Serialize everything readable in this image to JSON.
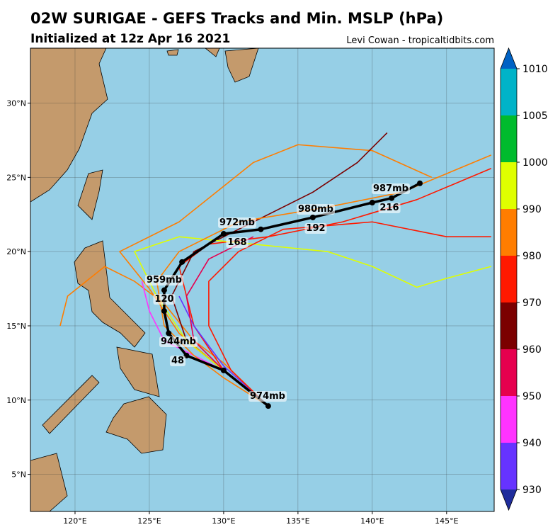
{
  "header": {
    "title": "02W SURIGAE - GEFS Tracks and Min. MSLP (hPa)",
    "subtitle": "Initialized at 12z Apr 16 2021",
    "credit": "Levi Cowan - tropicaltidbits.com"
  },
  "map": {
    "lonlim": [
      117,
      148.2
    ],
    "latlim": [
      2.5,
      33.7
    ],
    "xticks": [
      {
        "value": 120,
        "label": "120°E"
      },
      {
        "value": 125,
        "label": "125°E"
      },
      {
        "value": 130,
        "label": "130°E"
      },
      {
        "value": 135,
        "label": "135°E"
      },
      {
        "value": 140,
        "label": "140°E"
      },
      {
        "value": 145,
        "label": "145°E"
      }
    ],
    "yticks": [
      {
        "value": 5,
        "label": "5°N"
      },
      {
        "value": 10,
        "label": "10°N"
      },
      {
        "value": 15,
        "label": "15°N"
      },
      {
        "value": 20,
        "label": "20°N"
      },
      {
        "value": 25,
        "label": "25°N"
      },
      {
        "value": 30,
        "label": "30°N"
      }
    ],
    "tracks": [
      {
        "color": "#ff7d00",
        "points": [
          [
            133,
            9.6
          ],
          [
            130,
            12.5
          ],
          [
            128,
            14
          ],
          [
            126,
            16.5
          ],
          [
            124,
            18
          ],
          [
            122,
            19
          ],
          [
            119.5,
            17
          ],
          [
            119,
            15
          ]
        ]
      },
      {
        "color": "#ff7d00",
        "points": [
          [
            133,
            9.6
          ],
          [
            130,
            12
          ],
          [
            127,
            14.5
          ],
          [
            125,
            17.5
          ],
          [
            123,
            20
          ],
          [
            127,
            22
          ],
          [
            132,
            26
          ],
          [
            135,
            27.2
          ],
          [
            140,
            26.8
          ],
          [
            144,
            25
          ]
        ]
      },
      {
        "color": "#ff1900",
        "points": [
          [
            133,
            9.6
          ],
          [
            130,
            12
          ],
          [
            128,
            15
          ],
          [
            127,
            19
          ],
          [
            129,
            20.5
          ],
          [
            133,
            21
          ],
          [
            138,
            22
          ],
          [
            143,
            23.5
          ],
          [
            148,
            25.6
          ]
        ]
      },
      {
        "color": "#7b0000",
        "points": [
          [
            133,
            9.6
          ],
          [
            130,
            12
          ],
          [
            127.5,
            14
          ],
          [
            126.5,
            17
          ],
          [
            128,
            20
          ],
          [
            132,
            22
          ],
          [
            136,
            24
          ],
          [
            139,
            26
          ],
          [
            141,
            28
          ]
        ]
      },
      {
        "color": "#dfff00",
        "points": [
          [
            133,
            9.6
          ],
          [
            130,
            12
          ],
          [
            127.5,
            14
          ],
          [
            125.5,
            17
          ],
          [
            124,
            20
          ],
          [
            127,
            21
          ],
          [
            132,
            20.5
          ],
          [
            137,
            20
          ],
          [
            140,
            19
          ],
          [
            143,
            17.6
          ],
          [
            145,
            18.2
          ],
          [
            148,
            19
          ]
        ]
      },
      {
        "color": "#ff33ff",
        "points": [
          [
            133,
            9.6
          ],
          [
            130,
            12
          ],
          [
            128,
            13
          ],
          [
            126,
            14
          ],
          [
            125,
            16
          ],
          [
            124.5,
            18
          ]
        ]
      },
      {
        "color": "#6633ff",
        "points": [
          [
            133,
            9.6
          ],
          [
            130,
            12.3
          ],
          [
            128,
            15
          ],
          [
            127,
            17
          ]
        ]
      },
      {
        "color": "#ff1900",
        "points": [
          [
            133,
            9.6
          ],
          [
            130.5,
            12
          ],
          [
            129,
            15
          ],
          [
            129,
            18
          ],
          [
            131,
            20
          ],
          [
            134,
            21.5
          ],
          [
            140,
            22
          ],
          [
            145,
            21
          ],
          [
            148,
            21
          ]
        ]
      },
      {
        "color": "#ff7d00",
        "points": [
          [
            133,
            9.6
          ],
          [
            130,
            11.5
          ],
          [
            128,
            13
          ],
          [
            126,
            15
          ],
          [
            125.5,
            18
          ],
          [
            127,
            20
          ],
          [
            131,
            22
          ],
          [
            137,
            23
          ],
          [
            142,
            24
          ],
          [
            148,
            26.5
          ]
        ]
      },
      {
        "color": "#e6004e",
        "points": [
          [
            133,
            9.6
          ],
          [
            130,
            12
          ],
          [
            128,
            14
          ],
          [
            127.5,
            17
          ],
          [
            129,
            19.5
          ],
          [
            132,
            21
          ]
        ]
      }
    ],
    "mean_track": {
      "color": "#000000",
      "points": [
        [
          133,
          9.6
        ],
        [
          130,
          12
        ],
        [
          127.5,
          13
        ],
        [
          126.3,
          14.5
        ],
        [
          126,
          16
        ],
        [
          126,
          17.4
        ],
        [
          127.2,
          19.3
        ],
        [
          130,
          21.2
        ],
        [
          132.5,
          21.5
        ],
        [
          136,
          22.3
        ],
        [
          140,
          23.3
        ],
        [
          141.3,
          23.6
        ],
        [
          143.2,
          24.6
        ]
      ],
      "labels": [
        "974mb",
        "944mb",
        "48",
        "959mb",
        "120",
        "972mb",
        "168",
        "980mb",
        "192",
        "987mb",
        "216"
      ]
    }
  },
  "colorbar": {
    "ticks": [
      1010,
      1005,
      1000,
      990,
      980,
      970,
      960,
      950,
      940,
      930
    ],
    "colors": [
      "#00b3c8",
      "#00bb2d",
      "#dfff00",
      "#ff7d00",
      "#ff1900",
      "#7b0000",
      "#e6004e",
      "#ff33ff",
      "#6633ff"
    ],
    "top_color": "#0062c4",
    "bottom_color": "#1f2d9c"
  }
}
